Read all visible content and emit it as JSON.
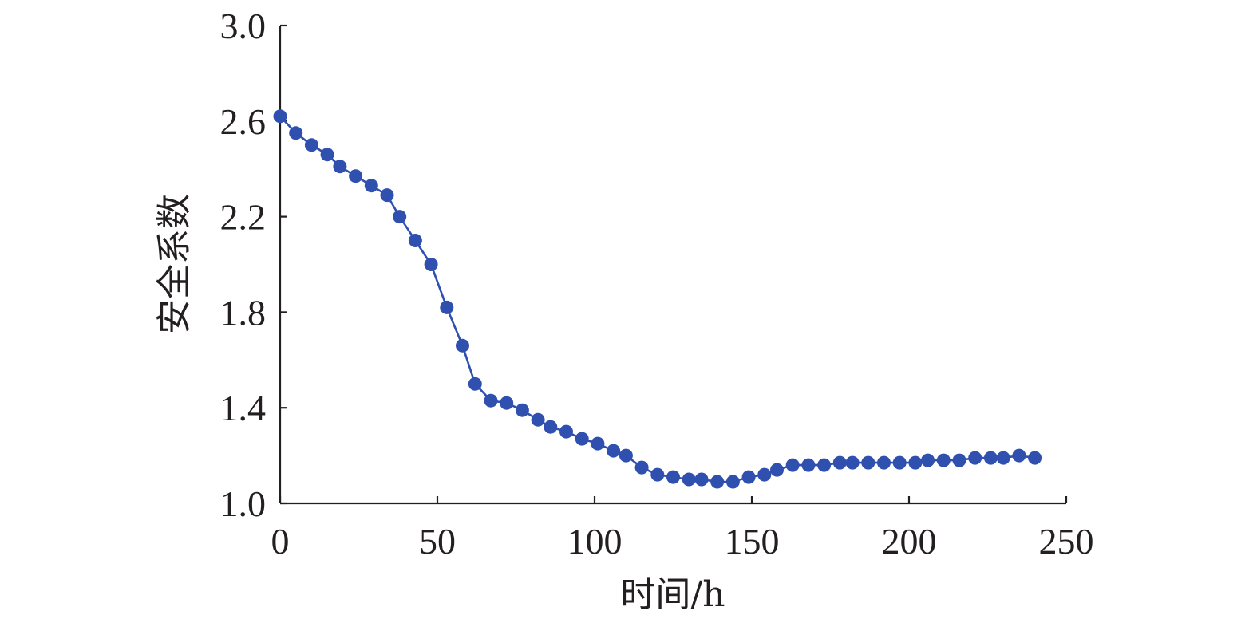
{
  "chart_data": {
    "type": "line",
    "title": "",
    "xlabel": "时间/h",
    "ylabel": "安全系数",
    "xlim": [
      0,
      250
    ],
    "ylim": [
      1.0,
      3.0
    ],
    "x_ticks": [
      "0",
      "50",
      "100",
      "150",
      "200",
      "250"
    ],
    "y_ticks": [
      "1.0",
      "1.4",
      "1.8",
      "2.2",
      "2.6",
      "3.0"
    ],
    "grid": false,
    "legend": "none",
    "color": "#3050b0",
    "series": [
      {
        "marker": "circle",
        "x": [
          0,
          5,
          10,
          15,
          19,
          24,
          29,
          34,
          38,
          43,
          48,
          53,
          58,
          62,
          67,
          72,
          77,
          82,
          86,
          91,
          96,
          101,
          106,
          110,
          115,
          120,
          125,
          130,
          134,
          139,
          144,
          149,
          154,
          158,
          163,
          168,
          173,
          178,
          182,
          187,
          192,
          197,
          202,
          206,
          211,
          216,
          221,
          226,
          230,
          235,
          240
        ],
        "y": [
          2.62,
          2.55,
          2.5,
          2.46,
          2.41,
          2.37,
          2.33,
          2.29,
          2.2,
          2.1,
          2.0,
          1.82,
          1.66,
          1.5,
          1.43,
          1.42,
          1.39,
          1.35,
          1.32,
          1.3,
          1.27,
          1.25,
          1.22,
          1.2,
          1.15,
          1.12,
          1.11,
          1.1,
          1.1,
          1.09,
          1.09,
          1.11,
          1.12,
          1.14,
          1.16,
          1.16,
          1.16,
          1.17,
          1.17,
          1.17,
          1.17,
          1.17,
          1.17,
          1.18,
          1.18,
          1.18,
          1.19,
          1.19,
          1.19,
          1.2,
          1.19
        ]
      }
    ]
  }
}
